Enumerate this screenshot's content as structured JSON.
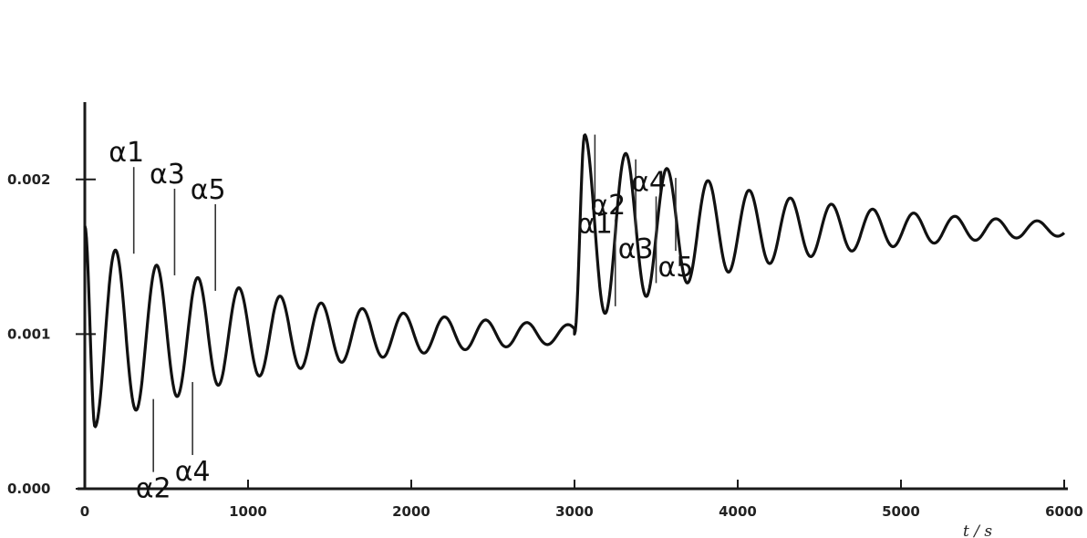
{
  "chart_data": {
    "type": "line",
    "title": "",
    "xlabel": "t / s",
    "ylabel": "",
    "xlim": [
      0,
      6000
    ],
    "ylim": [
      0,
      0.0025
    ],
    "x_ticks": [
      0,
      1000,
      2000,
      3000,
      4000,
      5000,
      6000
    ],
    "x_tick_labels": [
      "0",
      "1000",
      "2000",
      "3000",
      "4000",
      "5000",
      "6000"
    ],
    "y_ticks": [
      0.0,
      0.001,
      0.002
    ],
    "y_tick_labels": [
      "0.000",
      "0.001",
      "0.002"
    ],
    "grid": false,
    "series": [
      {
        "color": "#111111",
        "step1": {
          "t_start": 0,
          "t_end": 3000,
          "initial": 0.0017,
          "final": 0.001,
          "first_extreme": 0.0004,
          "period": 252,
          "decay_per_period": 0.82
        },
        "step2": {
          "t_start": 3000,
          "t_end": 6000,
          "initial": 0.001,
          "final": 0.00168,
          "first_extreme": 0.00229,
          "period": 252,
          "decay_per_period": 0.8
        }
      }
    ],
    "annotations": [
      {
        "text": "α1",
        "x": 300,
        "y": 0.00152
      },
      {
        "text": "α2",
        "x": 420,
        "y": 0.00058
      },
      {
        "text": "α3",
        "x": 550,
        "y": 0.00138
      },
      {
        "text": "α4",
        "x": 660,
        "y": 0.00069
      },
      {
        "text": "α5",
        "x": 800,
        "y": 0.00128
      },
      {
        "text": "α1",
        "x": 3125,
        "y": 0.00229
      },
      {
        "text": "α2",
        "x": 3250,
        "y": 0.00118
      },
      {
        "text": "α3",
        "x": 3375,
        "y": 0.00213
      },
      {
        "text": "α4",
        "x": 3500,
        "y": 0.00133
      },
      {
        "text": "α5",
        "x": 3620,
        "y": 0.00201
      }
    ]
  }
}
